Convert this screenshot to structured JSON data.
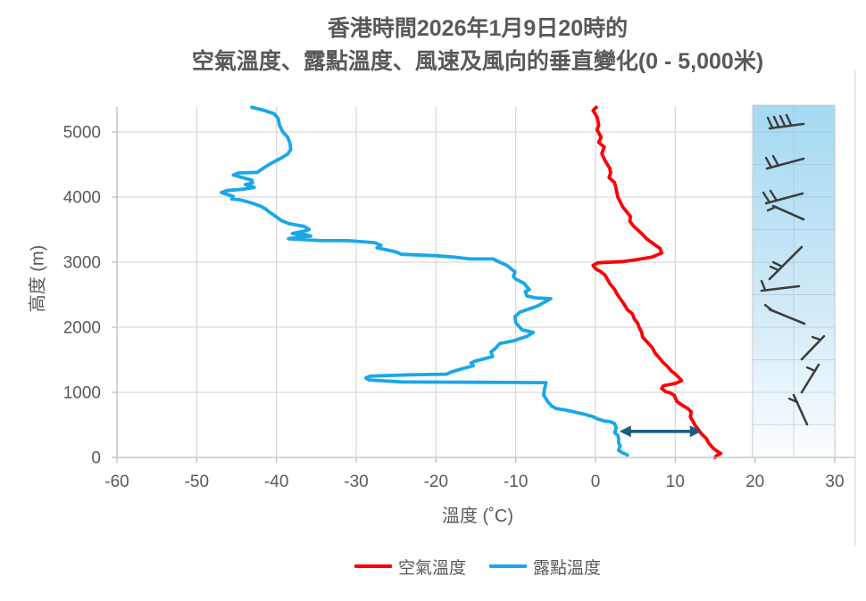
{
  "chart_data": {
    "type": "line",
    "title_lines": [
      "香港時間2026年1月9日20時的",
      "空氣溫度、露點溫度、風速及風向的垂直變化(0 - 5,000米)"
    ],
    "xlabel": "溫度 (˚C)",
    "ylabel": "高度 (m)",
    "xlim": [
      -60,
      30
    ],
    "ylim": [
      0,
      5400
    ],
    "x_ticks": [
      -60,
      -50,
      -40,
      -30,
      -20,
      -10,
      0,
      10,
      20,
      30
    ],
    "y_ticks": [
      0,
      1000,
      2000,
      3000,
      4000,
      5000
    ],
    "grid": true,
    "legend_position": "bottom",
    "colors": {
      "grid": "#D9D9D9",
      "axis": "#BFBFBF",
      "text": "#595959",
      "barb": "#3E3E3E",
      "frame": "#D9D9D9"
    },
    "series": [
      {
        "name": "空氣溫度",
        "color": "#FB0007",
        "points": [
          [
            0.1,
            5380
          ],
          [
            -0.3,
            5330
          ],
          [
            0.2,
            5230
          ],
          [
            0.4,
            5110
          ],
          [
            0.2,
            5030
          ],
          [
            0.7,
            4920
          ],
          [
            0.4,
            4840
          ],
          [
            1.1,
            4770
          ],
          [
            0.8,
            4670
          ],
          [
            1.2,
            4560
          ],
          [
            1.8,
            4440
          ],
          [
            1.9,
            4370
          ],
          [
            1.7,
            4300
          ],
          [
            2.4,
            4220
          ],
          [
            2.6,
            4120
          ],
          [
            2.8,
            4000
          ],
          [
            3.4,
            3850
          ],
          [
            4.4,
            3700
          ],
          [
            4.3,
            3630
          ],
          [
            4.8,
            3550
          ],
          [
            5.7,
            3450
          ],
          [
            6.4,
            3360
          ],
          [
            7.4,
            3270
          ],
          [
            8.1,
            3210
          ],
          [
            8.3,
            3140
          ],
          [
            7.1,
            3080
          ],
          [
            5.2,
            3040
          ],
          [
            3.5,
            3010
          ],
          [
            0.3,
            2990
          ],
          [
            -0.3,
            2950
          ],
          [
            0.0,
            2900
          ],
          [
            0.7,
            2850
          ],
          [
            1.2,
            2800
          ],
          [
            1.8,
            2670
          ],
          [
            2.4,
            2580
          ],
          [
            2.8,
            2490
          ],
          [
            3.5,
            2370
          ],
          [
            4.0,
            2270
          ],
          [
            4.6,
            2210
          ],
          [
            4.9,
            2120
          ],
          [
            5.3,
            2060
          ],
          [
            5.5,
            1990
          ],
          [
            5.8,
            1920
          ],
          [
            5.9,
            1850
          ],
          [
            6.5,
            1770
          ],
          [
            7.1,
            1690
          ],
          [
            7.5,
            1600
          ],
          [
            8.0,
            1530
          ],
          [
            8.4,
            1470
          ],
          [
            9.0,
            1400
          ],
          [
            9.5,
            1330
          ],
          [
            10.1,
            1270
          ],
          [
            10.5,
            1220
          ],
          [
            10.8,
            1180
          ],
          [
            10.1,
            1140
          ],
          [
            8.5,
            1100
          ],
          [
            8.3,
            1060
          ],
          [
            8.8,
            1010
          ],
          [
            9.4,
            990
          ],
          [
            9.9,
            950
          ],
          [
            10.2,
            860
          ],
          [
            10.9,
            800
          ],
          [
            11.6,
            750
          ],
          [
            12.0,
            700
          ],
          [
            11.9,
            620
          ],
          [
            12.2,
            560
          ],
          [
            12.5,
            490
          ],
          [
            12.9,
            430
          ],
          [
            13.3,
            360
          ],
          [
            13.9,
            290
          ],
          [
            14.2,
            220
          ],
          [
            14.7,
            150
          ],
          [
            15.2,
            100
          ],
          [
            15.7,
            60
          ],
          [
            15.2,
            30
          ],
          [
            15.0,
            0
          ]
        ]
      },
      {
        "name": "露點溫度",
        "color": "#1BA7E8",
        "points": [
          [
            -43.1,
            5380
          ],
          [
            -41.5,
            5330
          ],
          [
            -40.3,
            5280
          ],
          [
            -39.8,
            5210
          ],
          [
            -39.6,
            5100
          ],
          [
            -39.2,
            5000
          ],
          [
            -38.6,
            4920
          ],
          [
            -38.3,
            4820
          ],
          [
            -38.2,
            4730
          ],
          [
            -38.6,
            4660
          ],
          [
            -39.4,
            4600
          ],
          [
            -40.8,
            4510
          ],
          [
            -41.7,
            4440
          ],
          [
            -42.4,
            4380
          ],
          [
            -44.8,
            4370
          ],
          [
            -45.4,
            4340
          ],
          [
            -44.3,
            4300
          ],
          [
            -43.1,
            4260
          ],
          [
            -43.0,
            4220
          ],
          [
            -43.9,
            4190
          ],
          [
            -42.8,
            4150
          ],
          [
            -44.2,
            4120
          ],
          [
            -46.2,
            4100
          ],
          [
            -46.9,
            4070
          ],
          [
            -46.2,
            4040
          ],
          [
            -45.4,
            4010
          ],
          [
            -45.6,
            3970
          ],
          [
            -44.7,
            3960
          ],
          [
            -43.7,
            3930
          ],
          [
            -42.9,
            3900
          ],
          [
            -42.0,
            3860
          ],
          [
            -41.4,
            3820
          ],
          [
            -40.9,
            3770
          ],
          [
            -40.4,
            3730
          ],
          [
            -39.4,
            3640
          ],
          [
            -38.4,
            3590
          ],
          [
            -36.5,
            3550
          ],
          [
            -35.9,
            3500
          ],
          [
            -36.8,
            3470
          ],
          [
            -38.0,
            3440
          ],
          [
            -36.2,
            3420
          ],
          [
            -35.7,
            3400
          ],
          [
            -37.5,
            3380
          ],
          [
            -38.5,
            3360
          ],
          [
            -34.5,
            3330
          ],
          [
            -31.0,
            3330
          ],
          [
            -27.7,
            3300
          ],
          [
            -26.9,
            3260
          ],
          [
            -27.4,
            3220
          ],
          [
            -26.2,
            3190
          ],
          [
            -25.1,
            3160
          ],
          [
            -24.3,
            3120
          ],
          [
            -20.2,
            3100
          ],
          [
            -17.9,
            3080
          ],
          [
            -15.7,
            3050
          ],
          [
            -12.8,
            3050
          ],
          [
            -12.2,
            3010
          ],
          [
            -11.1,
            2950
          ],
          [
            -10.5,
            2890
          ],
          [
            -10.1,
            2850
          ],
          [
            -10.3,
            2780
          ],
          [
            -10.0,
            2740
          ],
          [
            -9.0,
            2680
          ],
          [
            -8.6,
            2620
          ],
          [
            -8.3,
            2580
          ],
          [
            -8.8,
            2550
          ],
          [
            -8.6,
            2480
          ],
          [
            -7.5,
            2450
          ],
          [
            -5.6,
            2440
          ],
          [
            -7.2,
            2330
          ],
          [
            -9.5,
            2230
          ],
          [
            -10.1,
            2160
          ],
          [
            -10.0,
            2070
          ],
          [
            -9.2,
            1960
          ],
          [
            -7.8,
            1920
          ],
          [
            -8.6,
            1860
          ],
          [
            -10.3,
            1790
          ],
          [
            -12.0,
            1750
          ],
          [
            -12.5,
            1680
          ],
          [
            -13.1,
            1620
          ],
          [
            -12.9,
            1550
          ],
          [
            -15.1,
            1480
          ],
          [
            -15.6,
            1450
          ],
          [
            -15.3,
            1410
          ],
          [
            -16.5,
            1370
          ],
          [
            -17.9,
            1320
          ],
          [
            -18.7,
            1280
          ],
          [
            -23.2,
            1270
          ],
          [
            -25.4,
            1260
          ],
          [
            -28.2,
            1250
          ],
          [
            -28.8,
            1220
          ],
          [
            -28.4,
            1190
          ],
          [
            -24.3,
            1160
          ],
          [
            -6.2,
            1150
          ],
          [
            -6.4,
            1040
          ],
          [
            -6.5,
            960
          ],
          [
            -6.0,
            860
          ],
          [
            -5.5,
            790
          ],
          [
            -4.9,
            750
          ],
          [
            -3.8,
            730
          ],
          [
            -2.7,
            700
          ],
          [
            -1.6,
            670
          ],
          [
            -0.4,
            630
          ],
          [
            0.3,
            590
          ],
          [
            1.1,
            560
          ],
          [
            1.8,
            550
          ],
          [
            2.4,
            520
          ],
          [
            2.6,
            450
          ],
          [
            2.4,
            380
          ],
          [
            2.8,
            340
          ],
          [
            2.9,
            290
          ],
          [
            2.9,
            220
          ],
          [
            3.1,
            180
          ],
          [
            2.9,
            110
          ],
          [
            3.4,
            70
          ],
          [
            4.0,
            40
          ]
        ]
      }
    ],
    "annotation_arrow": {
      "height_m": 400,
      "t_from": 3.0,
      "t_to": 13.3,
      "color": "#1F5D7E"
    },
    "wind_barb_panel": {
      "t_from": 19.7,
      "t_to": 30,
      "gradient_top": "#A4D9F2",
      "gradient_mid": "#CFE9F7",
      "gradient_bottom": "#FBFEFF",
      "cell_line_color": "#9FB6C4",
      "cell_step_m": 500,
      "barbs": [
        {
          "staff": [
            862,
            144,
            900,
            139
          ],
          "ticks": [
            [
              865,
              143,
              860,
              132
            ],
            [
              872,
              142,
              867,
              131
            ],
            [
              879,
              141,
              874,
              130
            ],
            [
              886,
              140,
              881,
              129
            ]
          ]
        },
        {
          "staff": [
            859,
            189,
            900,
            178
          ],
          "ticks": [
            [
              864,
              188,
              858,
              177
            ],
            [
              872,
              186,
              866,
              175
            ]
          ]
        },
        {
          "staff": [
            858,
            228,
            899,
            217
          ],
          "ticks": [
            [
              862,
              227,
              855,
              216
            ],
            [
              870,
              225,
              863,
              214
            ]
          ]
        },
        {
          "staff": [
            866,
            231,
            900,
            246
          ],
          "ticks": [
            [
              869,
              232,
              860,
              236
            ]
          ]
        },
        {
          "staff": [
            898,
            277,
            862,
            313
          ],
          "ticks": [
            [
              876,
              299,
              866,
              294
            ],
            [
              872,
              303,
              863,
              299
            ]
          ]
        },
        {
          "staff": [
            853,
            326,
            895,
            321
          ],
          "ticks": [
            [
              857,
              325,
              853,
              315
            ]
          ]
        },
        {
          "staff": [
            862,
            347,
            901,
            363
          ],
          "ticks": [
            [
              866,
              349,
              857,
              342
            ]
          ]
        },
        {
          "staff": [
            923,
            377,
            898,
            403
          ],
          "ticks": [
            [
              919,
              381,
              910,
              378
            ]
          ]
        },
        {
          "staff": [
            917,
            409,
            898,
            440
          ],
          "ticks": [
            [
              913,
              416,
              904,
              412
            ]
          ]
        },
        {
          "staff": [
            889,
            443,
            904,
            476
          ],
          "ticks": [
            [
              893,
              451,
              884,
              447
            ]
          ]
        }
      ]
    }
  }
}
